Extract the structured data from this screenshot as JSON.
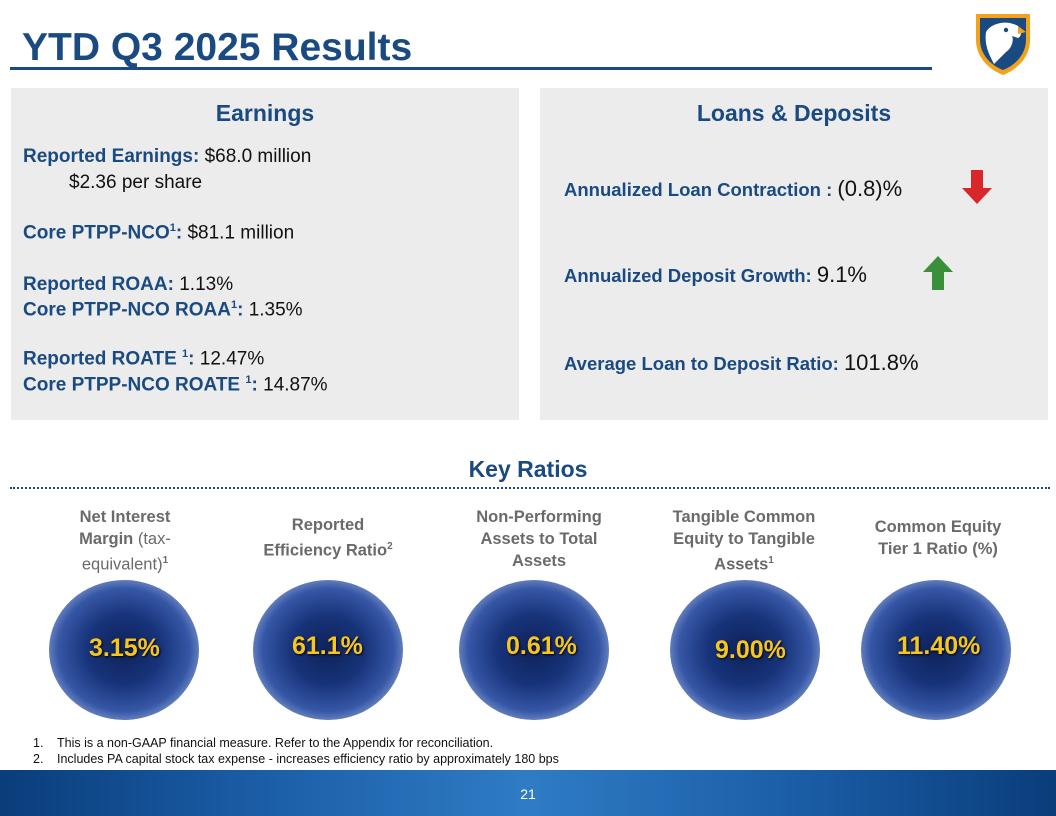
{
  "title": "YTD Q3 2025 Results",
  "earnings": {
    "heading": "Earnings",
    "reported_earnings_label": "Reported Earnings:",
    "reported_earnings_value": "$68.0 million",
    "per_share": "$2.36 per share",
    "core_ptpp_label": "Core PTPP-NCO",
    "core_ptpp_sup": "1",
    "core_ptpp_colon": ":",
    "core_ptpp_value": "$81.1 million",
    "roaa_label": "Reported ROAA:",
    "roaa_value": "1.13%",
    "core_roaa_label": "Core PTPP-NCO ROAA",
    "core_roaa_sup": "1",
    "core_roaa_colon": ":",
    "core_roaa_value": "1.35%",
    "roate_label": "Reported ROATE ",
    "roate_sup": "1",
    "roate_colon": ":",
    "roate_value": "12.47%",
    "core_roate_label": "Core PTPP-NCO ROATE ",
    "core_roate_sup": "1",
    "core_roate_colon": ":",
    "core_roate_value": "14.87%"
  },
  "loans": {
    "heading": "Loans & Deposits",
    "loan_label": "Annualized Loan Contraction :",
    "loan_value": "(0.8)%",
    "deposit_label": "Annualized Deposit Growth:",
    "deposit_value": "9.1%",
    "ratio_label": "Average Loan to Deposit Ratio:",
    "ratio_value": "101.8%",
    "down_arrow_color": "#d9262b",
    "up_arrow_color": "#3a8f3a",
    "down_icon": "arrow-down-icon",
    "up_icon": "arrow-up-icon"
  },
  "key_ratios": {
    "heading": "Key Ratios",
    "items": [
      {
        "line1": "Net Interest",
        "line2a": "Margin",
        "line2b": " (tax-",
        "line3": "equivalent)",
        "sup": "1",
        "value": "3.15%"
      },
      {
        "line1": "Reported",
        "line2": "Efficiency Ratio",
        "sup": "2",
        "value": "61.1%"
      },
      {
        "line1": "Non-Performing",
        "line2": "Assets to Total",
        "line3": "Assets",
        "value": "0.61%"
      },
      {
        "line1": "Tangible Common",
        "line2": "Equity to Tangible",
        "line3": "Assets",
        "sup": "1",
        "value": "9.00%"
      },
      {
        "line1": "Common Equity",
        "line2": "Tier 1 Ratio (%)",
        "value": "11.40%"
      }
    ]
  },
  "footnotes": [
    {
      "num": "1.",
      "text": "This is a non-GAAP financial measure. Refer to the Appendix for reconciliation."
    },
    {
      "num": "2.",
      "text": "Includes PA capital stock tax expense - increases efficiency ratio by approximately 180 bps"
    }
  ],
  "page_number": "21",
  "logo_icon": "eagle-shield-logo-icon"
}
